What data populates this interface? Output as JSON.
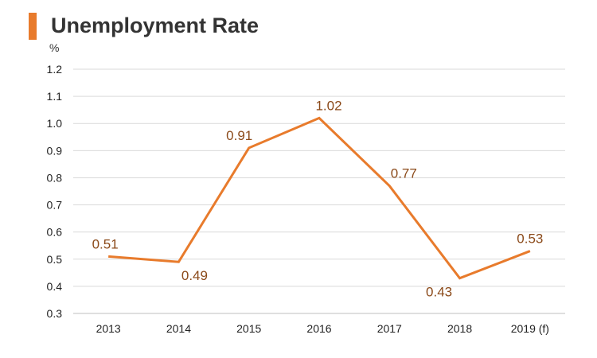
{
  "title": "Unemployment Rate",
  "unit_label": "%",
  "colors": {
    "accent": "#E87B2C",
    "label": "#8B4A1A",
    "grid": "#D9D9D9"
  },
  "chart_data": {
    "type": "line",
    "title": "Unemployment Rate",
    "ylabel": "%",
    "categories": [
      "2013",
      "2014",
      "2015",
      "2016",
      "2017",
      "2018",
      "2019 (f)"
    ],
    "series": [
      {
        "values": [
          0.51,
          0.49,
          0.91,
          1.02,
          0.77,
          0.43,
          0.53
        ]
      }
    ],
    "data_labels": [
      "0.51",
      "0.49",
      "0.91",
      "1.02",
      "0.77",
      "0.43",
      "0.53"
    ],
    "y_ticks": [
      "1.2",
      "1.1",
      "1.0",
      "0.9",
      "0.8",
      "0.7",
      "0.6",
      "0.5",
      "0.4",
      "0.3"
    ],
    "ylim": [
      0.3,
      1.2
    ],
    "grid": true
  }
}
